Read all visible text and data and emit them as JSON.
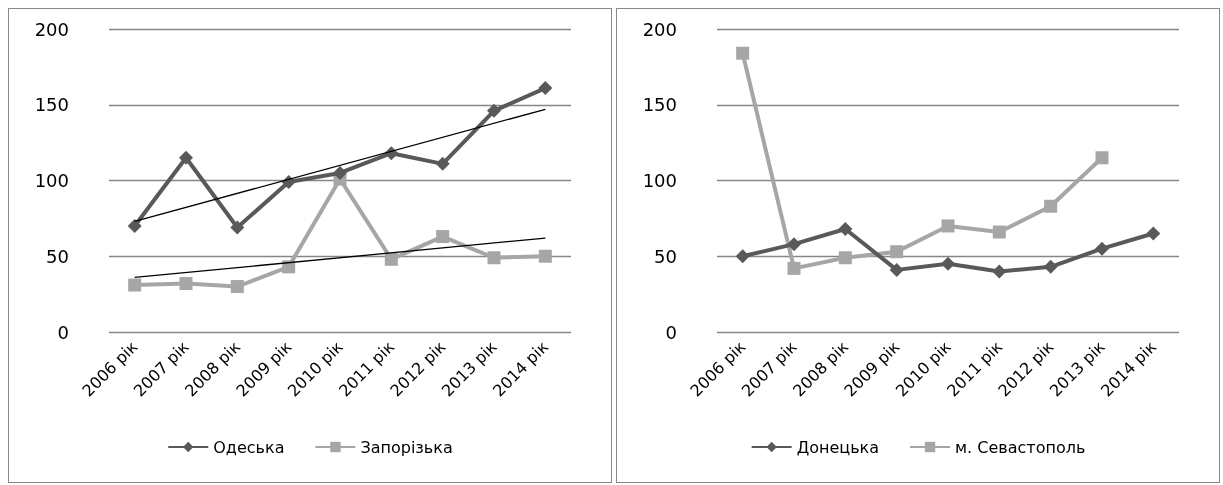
{
  "chart_data": [
    {
      "type": "line",
      "categories": [
        "2006 рік",
        "2007 рік",
        "2008 рік",
        "2009 рік",
        "2010 рік",
        "2011 рік",
        "2012 рік",
        "2013 рік",
        "2014 рік"
      ],
      "ylim": [
        0,
        200
      ],
      "yticks": [
        0,
        50,
        100,
        150,
        200
      ],
      "grid": "y",
      "legend": "bottom",
      "series": [
        {
          "name": "Одеська",
          "color": "#595959",
          "marker": "diamond",
          "values": [
            70,
            115,
            69,
            99,
            105,
            118,
            111,
            146,
            161
          ]
        },
        {
          "name": "Запорізька",
          "color": "#a6a6a6",
          "marker": "square",
          "values": [
            31,
            32,
            30,
            43,
            101,
            48,
            63,
            49,
            50
          ]
        },
        {
          "color": "#000000",
          "marker": "none",
          "x": [
            "2006 рік",
            "2014 рік"
          ],
          "values": [
            73,
            147
          ]
        },
        {
          "color": "#000000",
          "marker": "none",
          "x": [
            "2006 рік",
            "2014 рік"
          ],
          "values": [
            36,
            62
          ]
        }
      ]
    },
    {
      "type": "line",
      "categories": [
        "2006 рік",
        "2007 рік",
        "2008 рік",
        "2009 рік",
        "2010 рік",
        "2011 рік",
        "2012 рік",
        "2013 рік",
        "2014 рік"
      ],
      "ylim": [
        0,
        200
      ],
      "yticks": [
        0,
        50,
        100,
        150,
        200
      ],
      "grid": "y",
      "legend": "bottom",
      "series": [
        {
          "name": "Донецька",
          "color": "#595959",
          "marker": "diamond",
          "values": [
            50,
            58,
            68,
            41,
            45,
            40,
            43,
            55,
            65
          ]
        },
        {
          "name": "м. Севастополь",
          "color": "#a6a6a6",
          "marker": "square",
          "values": [
            184,
            42,
            49,
            53,
            70,
            66,
            83,
            115,
            null
          ]
        }
      ]
    }
  ]
}
